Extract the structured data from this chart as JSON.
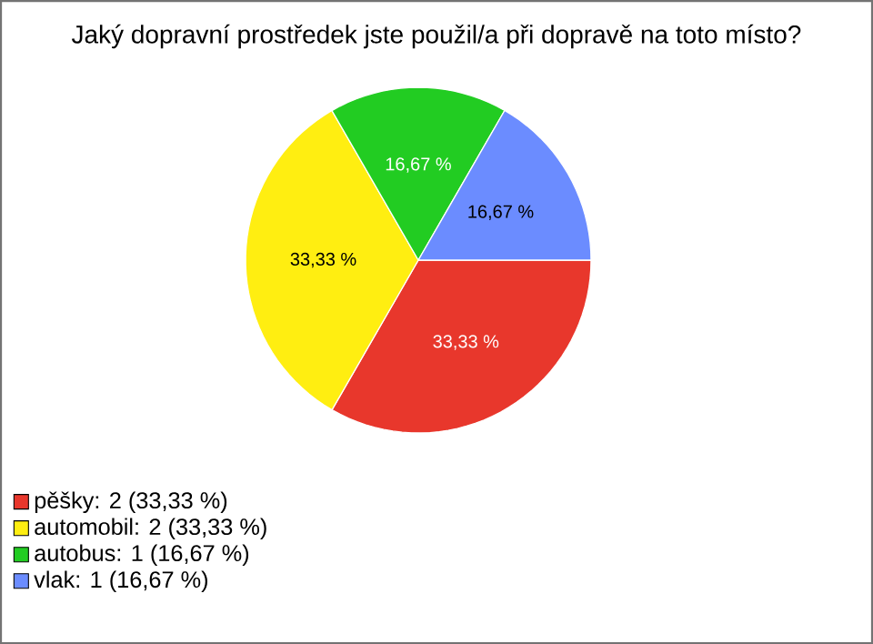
{
  "chart_data": {
    "type": "pie",
    "title": "Jaký dopravní prostředek jste použil/a při dopravě na toto místo?",
    "categories": [
      "pěšky: 2 (33,33 %)",
      "automobil: 2 (33,33 %)",
      "autobus: 1 (16,67 %)",
      "vlak: 1 (16,67 %)"
    ],
    "values": [
      33.33,
      33.33,
      16.67,
      16.67
    ],
    "value_labels": [
      "33,33 %",
      "33,33 %",
      "16,67 %",
      "16,67 %"
    ],
    "colors": [
      "#e8372c",
      "#ffee11",
      "#22cc22",
      "#6b8cff"
    ],
    "legend": "bottom left"
  }
}
